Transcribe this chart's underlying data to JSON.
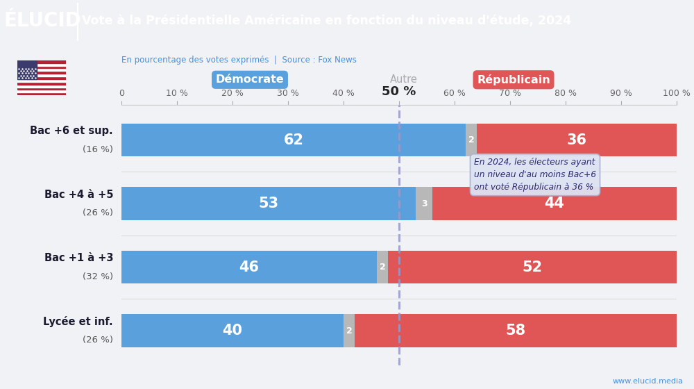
{
  "title": "Vote à la Présidentielle Américaine en fonction du niveau d'étude, 2024",
  "subtitle": "En pourcentage des votes exprimés  |  Source : Fox News",
  "brand": "ÉLUCID",
  "website": "www.elucid.media",
  "header_bg": "#2d4baa",
  "categories": [
    {
      "label": "Bac +6 et sup.",
      "pct": "(16 %)",
      "dem": 62,
      "autre": 2,
      "rep": 36
    },
    {
      "label": "Bac +4 à +5",
      "pct": "(26 %)",
      "dem": 53,
      "autre": 3,
      "rep": 44
    },
    {
      "label": "Bac +1 à +3",
      "pct": "(32 %)",
      "dem": 46,
      "autre": 2,
      "rep": 52
    },
    {
      "label": "Lycée et inf.",
      "pct": "(26 %)",
      "dem": 40,
      "autre": 2,
      "rep": 58
    }
  ],
  "color_dem": "#5aa0dc",
  "color_autre": "#b8b8b8",
  "color_rep": "#e05555",
  "color_autre_label": "#aaaaaa",
  "annotation_text_line1": "En 2024, les électeurs ayant",
  "annotation_text_line2": "un niveau d'au moins Bac+6",
  "annotation_text_line3": "ont voté Républicain à 36 %",
  "xticks": [
    0,
    10,
    20,
    30,
    40,
    50,
    60,
    70,
    80,
    90,
    100
  ],
  "vline_x": 50,
  "background_color": "#f0f2f5"
}
